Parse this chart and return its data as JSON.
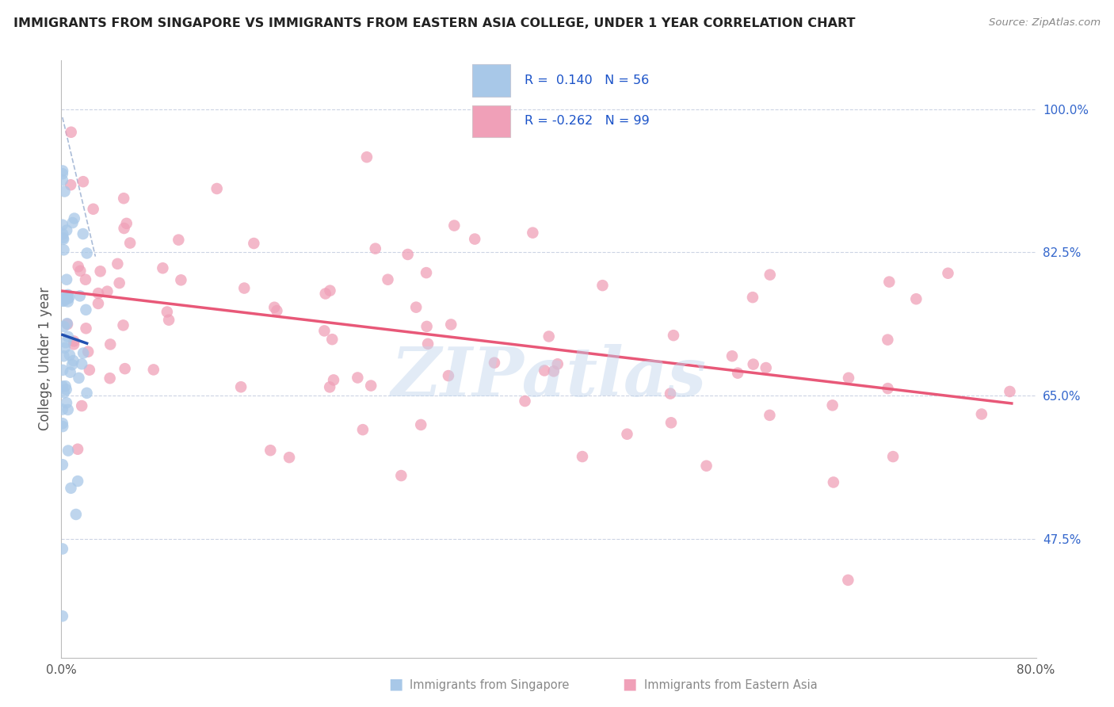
{
  "title": "IMMIGRANTS FROM SINGAPORE VS IMMIGRANTS FROM EASTERN ASIA COLLEGE, UNDER 1 YEAR CORRELATION CHART",
  "source": "Source: ZipAtlas.com",
  "ylabel": "College, Under 1 year",
  "ytick_labels": [
    "100.0%",
    "82.5%",
    "65.0%",
    "47.5%"
  ],
  "ytick_values": [
    1.0,
    0.825,
    0.65,
    0.475
  ],
  "xlim": [
    0.0,
    0.8
  ],
  "ylim": [
    0.33,
    1.06
  ],
  "watermark": "ZIPatlas",
  "blue_color": "#a8c8e8",
  "pink_color": "#f0a0b8",
  "blue_line_color": "#2050b0",
  "pink_line_color": "#e85878",
  "dashed_line_color": "#aabcd8",
  "sg_seed": 42,
  "ea_seed": 123,
  "legend_text1": "R =  0.140   N = 56",
  "legend_text2": "R = -0.262   N = 99",
  "legend_color": "#1a52c8",
  "bottom_legend_color": "#888888"
}
